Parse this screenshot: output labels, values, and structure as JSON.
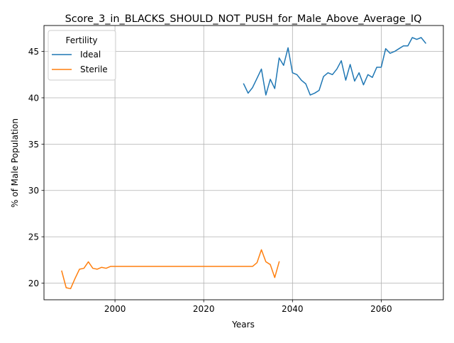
{
  "chart_data": {
    "type": "line",
    "title": "Score_3_in_BLACKS_SHOULD_NOT_PUSH_for_Male_Above_Average_IQ",
    "xlabel": "Years",
    "ylabel": "% of Male Population",
    "xlim": [
      1984,
      2074
    ],
    "ylim": [
      18.2,
      47.8
    ],
    "x_ticks": [
      2000,
      2020,
      2040,
      2060
    ],
    "y_ticks": [
      20,
      25,
      30,
      35,
      40,
      45
    ],
    "grid": true,
    "legend": {
      "title": "Fertility",
      "placement": "upper left"
    },
    "series": [
      {
        "name": "Ideal",
        "color": "#1f77b4",
        "x": [
          2029,
          2030,
          2031,
          2032,
          2033,
          2034,
          2035,
          2036,
          2037,
          2038,
          2039,
          2040,
          2041,
          2042,
          2043,
          2044,
          2045,
          2046,
          2047,
          2048,
          2049,
          2050,
          2051,
          2052,
          2053,
          2054,
          2055,
          2056,
          2057,
          2058,
          2059,
          2060,
          2061,
          2062,
          2063,
          2064,
          2065,
          2066,
          2067,
          2068,
          2069,
          2070
        ],
        "y": [
          41.5,
          40.5,
          41.1,
          42.1,
          43.1,
          40.3,
          42.0,
          41.0,
          44.3,
          43.5,
          45.4,
          42.7,
          42.5,
          41.9,
          41.5,
          40.3,
          40.5,
          40.8,
          42.3,
          42.7,
          42.5,
          43.1,
          44.0,
          41.9,
          43.6,
          41.8,
          42.7,
          41.4,
          42.5,
          42.2,
          43.3,
          43.3,
          45.3,
          44.8,
          45.0,
          45.3,
          45.6,
          45.6,
          46.5,
          46.3,
          46.5,
          45.9
        ]
      },
      {
        "name": "Sterile",
        "color": "#ff7f0e",
        "x": [
          1988,
          1989,
          1990,
          1991,
          1992,
          1993,
          1994,
          1995,
          1996,
          1997,
          1998,
          1999,
          2000,
          2001,
          2002,
          2003,
          2004,
          2005,
          2006,
          2007,
          2008,
          2009,
          2010,
          2011,
          2012,
          2013,
          2014,
          2015,
          2016,
          2017,
          2018,
          2019,
          2020,
          2021,
          2022,
          2023,
          2024,
          2025,
          2026,
          2027,
          2028,
          2029,
          2030,
          2031,
          2032,
          2033,
          2034,
          2035,
          2036,
          2037
        ],
        "y": [
          21.3,
          19.5,
          19.4,
          20.5,
          21.5,
          21.6,
          22.3,
          21.6,
          21.5,
          21.7,
          21.6,
          21.8,
          21.8,
          21.8,
          21.8,
          21.8,
          21.8,
          21.8,
          21.8,
          21.8,
          21.8,
          21.8,
          21.8,
          21.8,
          21.8,
          21.8,
          21.8,
          21.8,
          21.8,
          21.8,
          21.8,
          21.8,
          21.8,
          21.8,
          21.8,
          21.8,
          21.8,
          21.8,
          21.8,
          21.8,
          21.8,
          21.8,
          21.8,
          21.8,
          22.2,
          23.6,
          22.3,
          22.0,
          20.6,
          22.3
        ]
      }
    ]
  }
}
